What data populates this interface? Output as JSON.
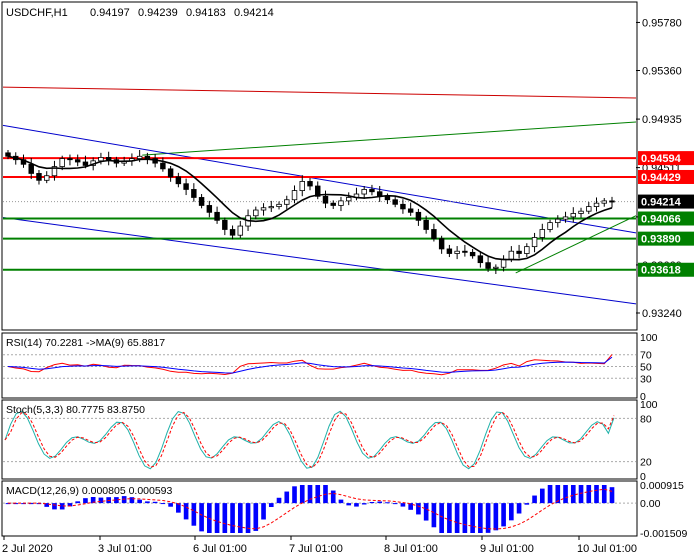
{
  "chart_data": {
    "type": "candlestick",
    "symbol": "USDCHF",
    "timeframe": "H1",
    "header": {
      "title": "USDCHF,H1",
      "open": "0.94197",
      "high": "0.94239",
      "low": "0.94183",
      "close": "0.94214"
    },
    "price_axis": {
      "ticks": [
        "0.95780",
        "0.95360",
        "0.94935",
        "0.94511",
        "0.94080",
        "0.93660",
        "0.93240"
      ],
      "ylim": [
        0.931,
        0.9595
      ]
    },
    "time_axis": {
      "labels": [
        "2 Jul 2020",
        "3 Jul 01:00",
        "6 Jul 01:00",
        "7 Jul 01:00",
        "8 Jul 01:00",
        "9 Jul 01:00",
        "10 Jul 01:00"
      ]
    },
    "last_price": {
      "value": 0.94214,
      "label": "0.94214"
    },
    "levels": [
      {
        "value": 0.94594,
        "label": "0.94594",
        "color": "#ff0000"
      },
      {
        "value": 0.94429,
        "label": "0.94429",
        "color": "#ff0000"
      },
      {
        "value": 0.94066,
        "label": "0.94066",
        "color": "#008000"
      },
      {
        "value": 0.9389,
        "label": "0.93890",
        "color": "#008000"
      },
      {
        "value": 0.93618,
        "label": "0.93618",
        "color": "#008000"
      }
    ],
    "close_series": [
      0.9461,
      0.9458,
      0.9454,
      0.9446,
      0.944,
      0.9444,
      0.9452,
      0.9459,
      0.9458,
      0.9456,
      0.9453,
      0.9457,
      0.946,
      0.9458,
      0.9455,
      0.9457,
      0.9459,
      0.9461,
      0.9459,
      0.9455,
      0.945,
      0.9443,
      0.9437,
      0.9432,
      0.9425,
      0.9418,
      0.9412,
      0.9405,
      0.9397,
      0.9392,
      0.94,
      0.9409,
      0.9414,
      0.9416,
      0.9417,
      0.9419,
      0.9423,
      0.9431,
      0.9439,
      0.9435,
      0.9426,
      0.942,
      0.9418,
      0.9422,
      0.9425,
      0.9428,
      0.9432,
      0.943,
      0.9426,
      0.9423,
      0.9419,
      0.9415,
      0.9412,
      0.9405,
      0.9397,
      0.9389,
      0.938,
      0.9376,
      0.9378,
      0.9377,
      0.9374,
      0.9368,
      0.9363,
      0.9364,
      0.9371,
      0.9378,
      0.9376,
      0.9382,
      0.939,
      0.9397,
      0.9403,
      0.9406,
      0.9408,
      0.9411,
      0.9413,
      0.9417,
      0.942,
      0.9422,
      0.9421
    ],
    "trend_lines": [
      {
        "name": "red-channel",
        "color": "#cc0000",
        "from": [
          0,
          0.95215
        ],
        "to": [
          1,
          0.9512
        ]
      },
      {
        "name": "green-channel-upper",
        "color": "#008000",
        "from": [
          0.22,
          0.9462
        ],
        "to": [
          1,
          0.9491
        ]
      },
      {
        "name": "blue-channel-upper",
        "color": "#0000cc",
        "from": [
          0,
          0.9488
        ],
        "to": [
          1,
          0.9394
        ]
      },
      {
        "name": "blue-channel-lower",
        "color": "#0000cc",
        "from": [
          0,
          0.94075
        ],
        "to": [
          1,
          0.9332
        ]
      },
      {
        "name": "green-support",
        "color": "#008000",
        "from": [
          0.81,
          0.9359
        ],
        "to": [
          1,
          0.9409
        ]
      }
    ],
    "indicators": [
      {
        "id": "rsi",
        "label": "RSI(14) 70.2281  ->MA(9) 65.8817",
        "ylim": [
          0,
          100
        ],
        "levels": [
          "70",
          "50",
          "30"
        ],
        "ticks": [
          "100",
          "70",
          "50",
          "30",
          "0"
        ],
        "value": 70.2281,
        "ma": 65.8817
      },
      {
        "id": "stochastic",
        "label": "Stoch(5,3,3) 80.7775 83.8750",
        "ylim": [
          0,
          100
        ],
        "levels": [
          "80",
          "20"
        ],
        "ticks": [
          "100",
          "80",
          "20",
          "0"
        ],
        "main": 80.7775,
        "signal": 83.875
      },
      {
        "id": "macd",
        "label": "MACD(12,26,9) 0.000805 0.000593",
        "ticks": [
          "0.000915",
          "0.00",
          "-0.001509"
        ],
        "ylim": [
          -0.001509,
          0.000915
        ],
        "macd": 0.000805,
        "signal": 0.000593
      }
    ],
    "colors": {
      "bull_candle": "#ffffff",
      "bear_candle": "#000000",
      "wick": "#000000",
      "ma_line": "#000000",
      "rsi_line": "#ff0000",
      "rsi_ma": "#0000ff",
      "stoch_main": "#20b2aa",
      "stoch_signal": "#ff0000",
      "macd_hist": "#0000ff",
      "macd_signal": "#ff0000",
      "last_price_box": "#000000"
    }
  }
}
